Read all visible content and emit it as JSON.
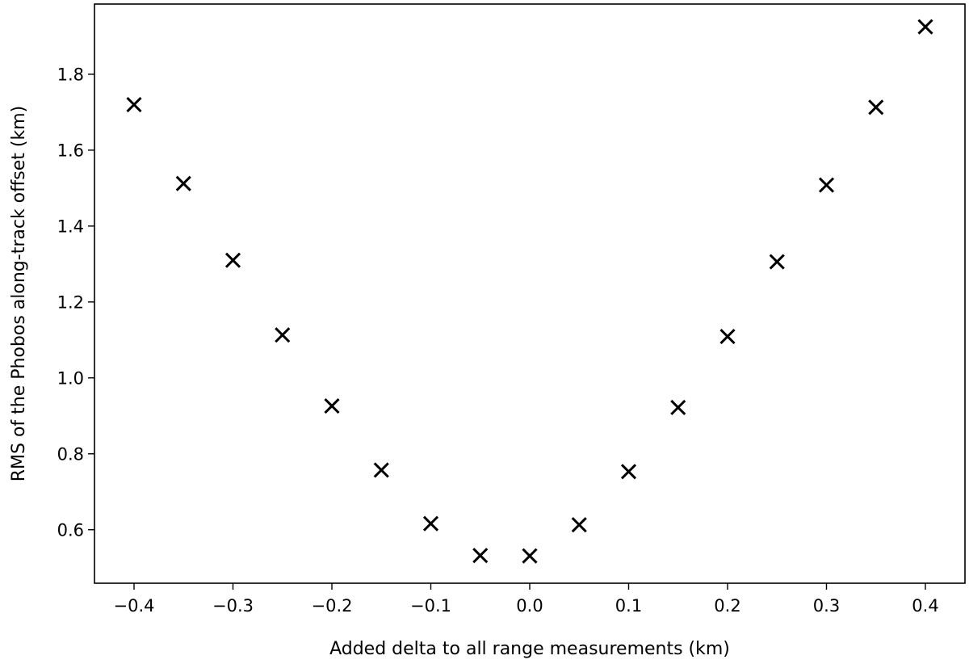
{
  "chart_data": {
    "type": "scatter",
    "title": "",
    "xlabel": "Added delta to all range measurements (km)",
    "ylabel": "RMS of the Phobos along-track offset (km)",
    "xlim": [
      -0.44,
      0.44
    ],
    "ylim": [
      0.459,
      1.985
    ],
    "xticks": [
      -0.4,
      -0.3,
      -0.2,
      -0.1,
      0.0,
      0.1,
      0.2,
      0.3,
      0.4
    ],
    "xtick_labels": [
      "−0.4",
      "−0.3",
      "−0.2",
      "−0.1",
      "0.0",
      "0.1",
      "0.2",
      "0.3",
      "0.4"
    ],
    "yticks": [
      0.6,
      0.8,
      1.0,
      1.2,
      1.4,
      1.6,
      1.8
    ],
    "ytick_labels": [
      "0.6",
      "0.8",
      "1.0",
      "1.2",
      "1.4",
      "1.6",
      "1.8"
    ],
    "grid": false,
    "marker": "x",
    "marker_color": "#000000",
    "series": [
      {
        "x": [
          -0.4,
          -0.35,
          -0.3,
          -0.25,
          -0.2,
          -0.15,
          -0.1,
          -0.05,
          0.0,
          0.05,
          0.1,
          0.15,
          0.2,
          0.25,
          0.3,
          0.35,
          0.4
        ],
        "y": [
          1.72,
          1.512,
          1.31,
          1.113,
          0.926,
          0.757,
          0.616,
          0.532,
          0.531,
          0.613,
          0.753,
          0.922,
          1.109,
          1.306,
          1.508,
          1.713,
          1.925
        ]
      }
    ]
  }
}
